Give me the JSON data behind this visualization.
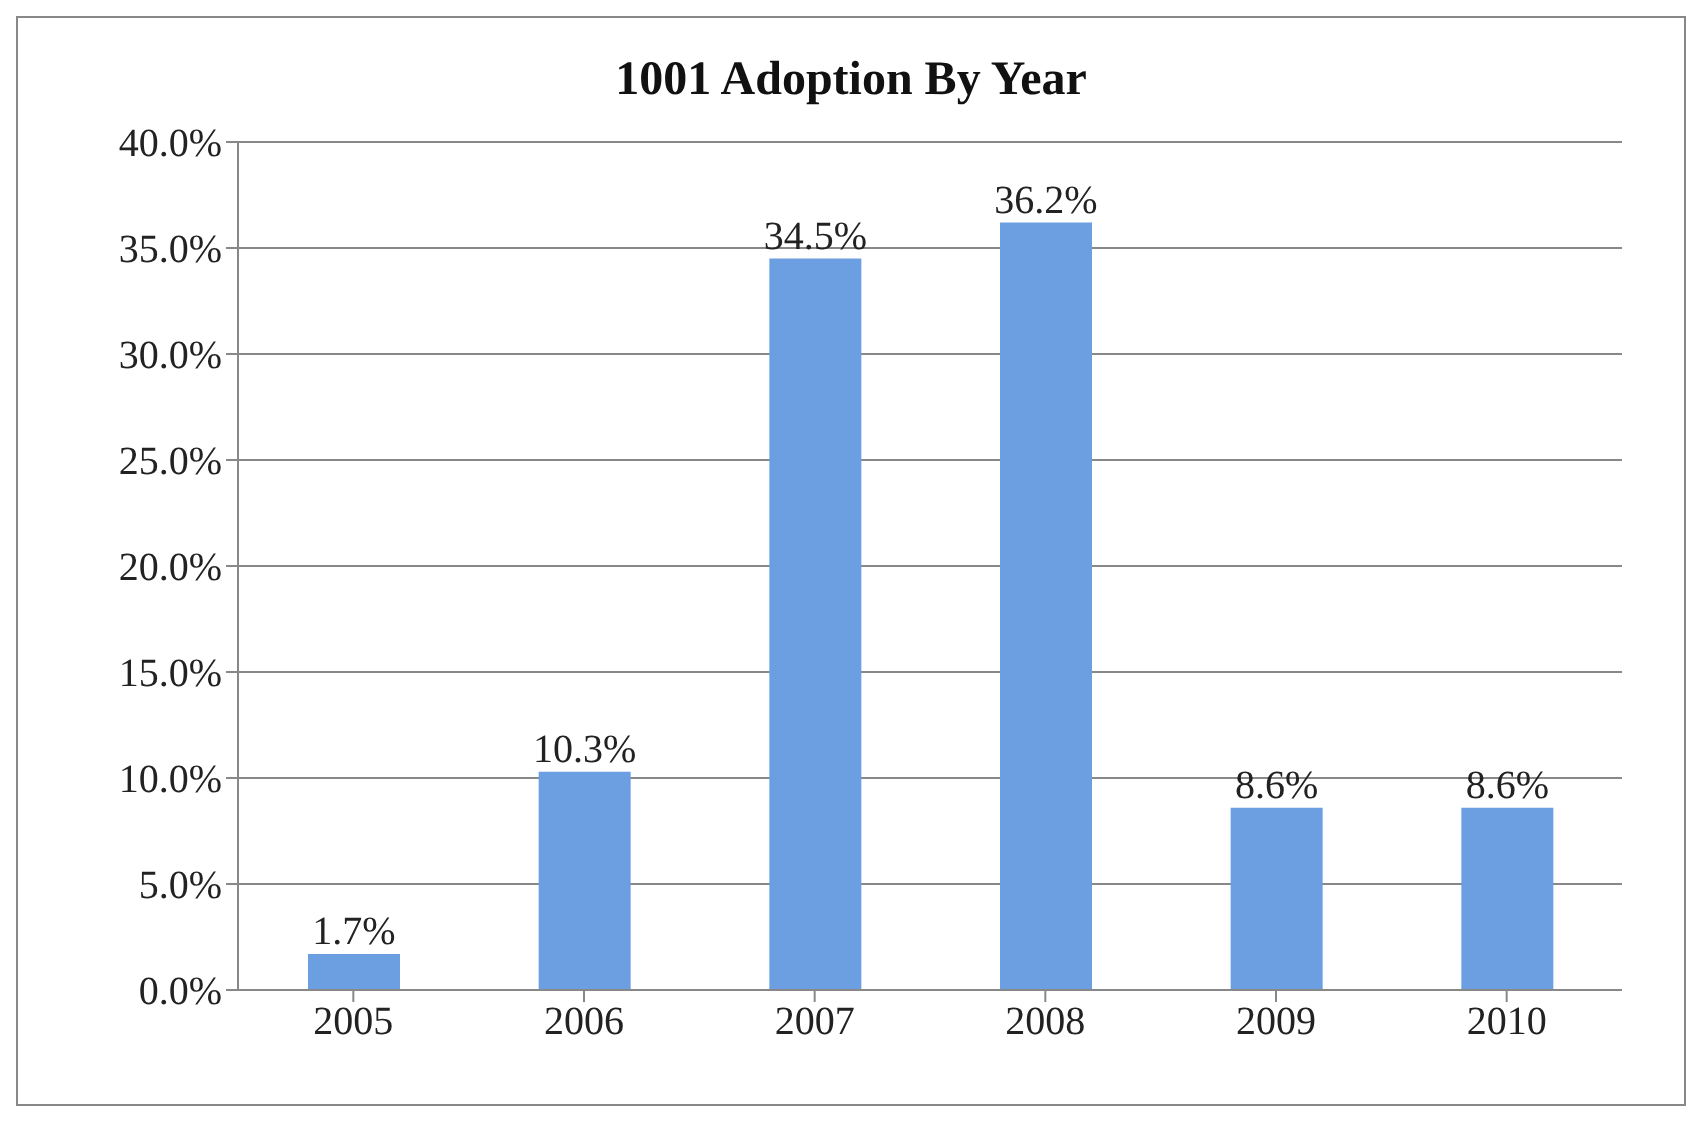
{
  "chart_data": {
    "type": "bar",
    "title": "1001 Adoption By Year",
    "categories": [
      "2005",
      "2006",
      "2007",
      "2008",
      "2009",
      "2010"
    ],
    "values": [
      1.7,
      10.3,
      34.5,
      36.2,
      8.6,
      8.6
    ],
    "color": "#6c9fe2",
    "value_labels": [
      "1.7%",
      "10.3%",
      "34.5%",
      "36.2%",
      "8.6%",
      "8.6%"
    ],
    "ylim": [
      0,
      40
    ],
    "yticks": [
      {
        "value": 0,
        "label": "0.0%"
      },
      {
        "value": 5,
        "label": "5.0%"
      },
      {
        "value": 10,
        "label": "10.0%"
      },
      {
        "value": 15,
        "label": "15.0%"
      },
      {
        "value": 20,
        "label": "20.0%"
      },
      {
        "value": 25,
        "label": "25.0%"
      },
      {
        "value": 30,
        "label": "30.0%"
      },
      {
        "value": 35,
        "label": "35.0%"
      },
      {
        "value": 40,
        "label": "40.0%"
      }
    ],
    "grid": "y"
  }
}
